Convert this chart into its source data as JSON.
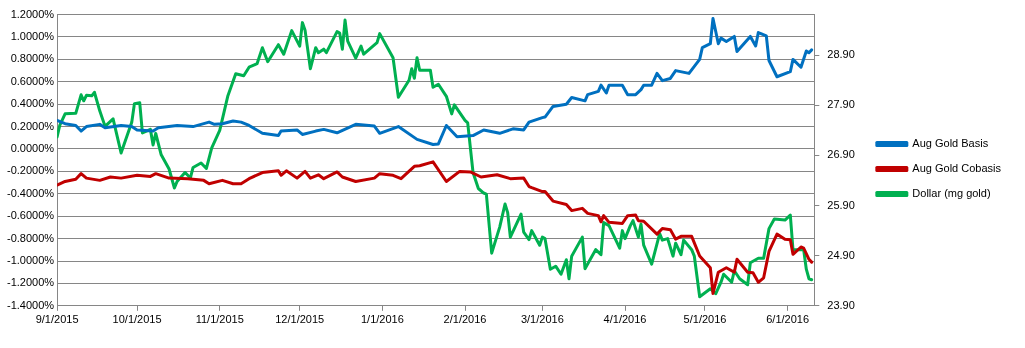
{
  "chart_data": {
    "type": "line",
    "xlim": [
      "2015-09-01",
      "2016-06-11"
    ],
    "xticks": [
      {
        "value": "2015-09-01",
        "label": "9/1/2015"
      },
      {
        "value": "2015-10-01",
        "label": "10/1/2015"
      },
      {
        "value": "2015-11-01",
        "label": "11/1/2015"
      },
      {
        "value": "2015-12-01",
        "label": "12/1/2015"
      },
      {
        "value": "2016-01-01",
        "label": "1/1/2016"
      },
      {
        "value": "2016-02-01",
        "label": "2/1/2016"
      },
      {
        "value": "2016-03-01",
        "label": "3/1/2016"
      },
      {
        "value": "2016-04-01",
        "label": "4/1/2016"
      },
      {
        "value": "2016-05-01",
        "label": "5/1/2016"
      },
      {
        "value": "2016-06-01",
        "label": "6/1/2016"
      }
    ],
    "ylim": [
      -1.4,
      1.2
    ],
    "yticks": [
      {
        "value": -1.4,
        "label": "-1.4000%"
      },
      {
        "value": -1.2,
        "label": "-1.2000%"
      },
      {
        "value": -1.0,
        "label": "-1.0000%"
      },
      {
        "value": -0.8,
        "label": "-0.8000%"
      },
      {
        "value": -0.6,
        "label": "-0.6000%"
      },
      {
        "value": -0.4,
        "label": "-0.4000%"
      },
      {
        "value": -0.2,
        "label": "-0.2000%"
      },
      {
        "value": 0,
        "label": "0.0000%"
      },
      {
        "value": 0.2,
        "label": "0.2000%"
      },
      {
        "value": 0.4,
        "label": "0.4000%"
      },
      {
        "value": 0.6,
        "label": "0.6000%"
      },
      {
        "value": 0.8,
        "label": "0.8000%"
      },
      {
        "value": 1.0,
        "label": "1.0000%"
      },
      {
        "value": 1.2,
        "label": "1.2000%"
      }
    ],
    "y2lim": [
      23.9,
      29.71
    ],
    "y2ticks": [
      {
        "value": 23.9,
        "label": "23.90"
      },
      {
        "value": 24.9,
        "label": "24.90"
      },
      {
        "value": 25.9,
        "label": "25.90"
      },
      {
        "value": 26.9,
        "label": "26.90"
      },
      {
        "value": 27.9,
        "label": "27.90"
      },
      {
        "value": 28.9,
        "label": "28.90"
      }
    ],
    "grid": "y",
    "legend": "right",
    "marker": "none",
    "line_style": "solid",
    "series": [
      {
        "name": "Aug Gold Basis",
        "color": "#0070c0",
        "x": [
          "2015-09-01",
          "2015-09-04",
          "2015-09-08",
          "2015-09-10",
          "2015-09-12",
          "2015-09-17",
          "2015-09-19",
          "2015-09-25",
          "2015-09-29",
          "2015-10-01",
          "2015-10-07",
          "2015-10-09",
          "2015-10-16",
          "2015-10-22",
          "2015-10-28",
          "2015-10-30",
          "2015-11-02",
          "2015-11-06",
          "2015-11-09",
          "2015-11-12",
          "2015-11-17",
          "2015-11-23",
          "2015-11-24",
          "2015-11-30",
          "2015-12-02",
          "2015-12-07",
          "2015-12-10",
          "2015-12-15",
          "2015-12-22",
          "2015-12-29",
          "2015-12-31",
          "2016-01-07",
          "2016-01-14",
          "2016-01-20",
          "2016-01-22",
          "2016-01-25",
          "2016-01-29",
          "2016-02-04",
          "2016-02-08",
          "2016-02-14",
          "2016-02-19",
          "2016-02-23",
          "2016-02-25",
          "2016-03-01",
          "2016-03-02",
          "2016-03-05",
          "2016-03-10",
          "2016-03-12",
          "2016-03-17",
          "2016-03-18",
          "2016-03-22",
          "2016-03-23",
          "2016-03-25",
          "2016-03-26",
          "2016-03-31",
          "2016-04-02",
          "2016-04-05",
          "2016-04-07",
          "2016-04-08",
          "2016-04-11",
          "2016-04-13",
          "2016-04-15",
          "2016-04-18",
          "2016-04-20",
          "2016-04-25",
          "2016-04-29",
          "2016-04-30",
          "2016-05-03",
          "2016-05-04",
          "2016-05-06",
          "2016-05-07",
          "2016-05-09",
          "2016-05-12",
          "2016-05-13",
          "2016-05-18",
          "2016-05-20",
          "2016-05-21",
          "2016-05-24",
          "2016-05-25",
          "2016-05-28",
          "2016-06-02",
          "2016-06-03",
          "2016-06-06",
          "2016-06-08",
          "2016-06-09",
          "2016-06-10"
        ],
        "values": [
          0.255,
          0.226,
          0.21,
          0.16,
          0.2,
          0.22,
          0.19,
          0.21,
          0.2,
          0.17,
          0.16,
          0.19,
          0.21,
          0.2,
          0.24,
          0.22,
          0.226,
          0.25,
          0.24,
          0.21,
          0.14,
          0.12,
          0.16,
          0.17,
          0.13,
          0.16,
          0.175,
          0.145,
          0.22,
          0.205,
          0.14,
          0.2,
          0.086,
          0.04,
          0.045,
          0.21,
          0.11,
          0.12,
          0.17,
          0.14,
          0.18,
          0.17,
          0.24,
          0.28,
          0.285,
          0.38,
          0.4,
          0.46,
          0.43,
          0.485,
          0.515,
          0.57,
          0.5,
          0.57,
          0.57,
          0.485,
          0.485,
          0.53,
          0.57,
          0.57,
          0.675,
          0.61,
          0.63,
          0.7,
          0.675,
          0.8,
          0.905,
          0.94,
          1.165,
          0.94,
          0.99,
          0.96,
          1.005,
          0.87,
          1.005,
          0.92,
          1.04,
          1.01,
          0.79,
          0.645,
          0.69,
          0.8,
          0.73,
          0.875,
          0.86,
          0.885
        ]
      },
      {
        "name": "Aug Gold Cobasis",
        "color": "#c00000",
        "x": [
          "2015-09-01",
          "2015-09-04",
          "2015-09-08",
          "2015-09-10",
          "2015-09-12",
          "2015-09-17",
          "2015-09-21",
          "2015-09-25",
          "2015-10-01",
          "2015-10-06",
          "2015-10-08",
          "2015-10-13",
          "2015-10-20",
          "2015-10-26",
          "2015-10-28",
          "2015-11-02",
          "2015-11-06",
          "2015-11-09",
          "2015-11-12",
          "2015-11-17",
          "2015-11-23",
          "2015-11-24",
          "2015-11-26",
          "2015-11-30",
          "2015-12-03",
          "2015-12-05",
          "2015-12-08",
          "2015-12-10",
          "2015-12-15",
          "2015-12-17",
          "2015-12-22",
          "2015-12-29",
          "2015-12-31",
          "2016-01-05",
          "2016-01-08",
          "2016-01-13",
          "2016-01-15",
          "2016-01-20",
          "2016-01-25",
          "2016-01-30",
          "2016-02-03",
          "2016-02-07",
          "2016-02-13",
          "2016-02-18",
          "2016-02-23",
          "2016-02-25",
          "2016-02-26",
          "2016-03-01",
          "2016-03-02",
          "2016-03-05",
          "2016-03-10",
          "2016-03-12",
          "2016-03-16",
          "2016-03-18",
          "2016-03-22",
          "2016-03-23",
          "2016-03-24",
          "2016-03-26",
          "2016-03-31",
          "2016-04-02",
          "2016-04-05",
          "2016-04-06",
          "2016-04-08",
          "2016-04-13",
          "2016-04-15",
          "2016-04-18",
          "2016-04-20",
          "2016-04-22",
          "2016-04-26",
          "2016-04-29",
          "2016-05-03",
          "2016-05-04",
          "2016-05-06",
          "2016-05-09",
          "2016-05-12",
          "2016-05-13",
          "2016-05-17",
          "2016-05-19",
          "2016-05-21",
          "2016-05-23",
          "2016-05-25",
          "2016-05-28",
          "2016-05-31",
          "2016-06-02",
          "2016-06-03",
          "2016-06-06",
          "2016-06-07",
          "2016-06-09",
          "2016-06-10"
        ],
        "values": [
          -0.322,
          -0.29,
          -0.27,
          -0.22,
          -0.26,
          -0.28,
          -0.25,
          -0.26,
          -0.235,
          -0.245,
          -0.22,
          -0.26,
          -0.265,
          -0.28,
          -0.31,
          -0.28,
          -0.31,
          -0.31,
          -0.265,
          -0.21,
          -0.195,
          -0.235,
          -0.195,
          -0.26,
          -0.2,
          -0.26,
          -0.23,
          -0.265,
          -0.205,
          -0.25,
          -0.29,
          -0.26,
          -0.22,
          -0.235,
          -0.265,
          -0.155,
          -0.15,
          -0.115,
          -0.29,
          -0.2,
          -0.205,
          -0.25,
          -0.23,
          -0.265,
          -0.26,
          -0.335,
          -0.345,
          -0.38,
          -0.38,
          -0.465,
          -0.495,
          -0.55,
          -0.53,
          -0.575,
          -0.595,
          -0.65,
          -0.595,
          -0.655,
          -0.665,
          -0.595,
          -0.59,
          -0.64,
          -0.645,
          -0.76,
          -0.71,
          -0.72,
          -0.805,
          -0.78,
          -0.78,
          -0.955,
          -1.06,
          -1.29,
          -1.1,
          -1.06,
          -1.1,
          -0.985,
          -1.1,
          -1.105,
          -1.19,
          -1.15,
          -0.915,
          -0.76,
          -0.805,
          -0.81,
          -0.94,
          -0.875,
          -0.885,
          -0.985,
          -1.01
        ]
      },
      {
        "name": "Dollar (mg gold)",
        "color": "#00b050",
        "axis": "y2",
        "x": [
          "2015-09-01",
          "2015-09-02",
          "2015-09-04",
          "2015-09-08",
          "2015-09-10",
          "2015-09-11",
          "2015-09-12",
          "2015-09-14",
          "2015-09-15",
          "2015-09-17",
          "2015-09-19",
          "2015-09-22",
          "2015-09-25",
          "2015-09-29",
          "2015-09-30",
          "2015-10-02",
          "2015-10-03",
          "2015-10-06",
          "2015-10-07",
          "2015-10-08",
          "2015-10-10",
          "2015-10-13",
          "2015-10-15",
          "2015-10-16",
          "2015-10-19",
          "2015-10-21",
          "2015-10-22",
          "2015-10-25",
          "2015-10-27",
          "2015-10-29",
          "2015-11-01",
          "2015-11-04",
          "2015-11-07",
          "2015-11-10",
          "2015-11-12",
          "2015-11-15",
          "2015-11-17",
          "2015-11-19",
          "2015-11-23",
          "2015-11-25",
          "2015-11-28",
          "2015-12-01",
          "2015-12-02",
          "2015-12-03",
          "2015-12-05",
          "2015-12-07",
          "2015-12-08",
          "2015-12-10",
          "2015-12-11",
          "2015-12-15",
          "2015-12-16",
          "2015-12-17",
          "2015-12-18",
          "2015-12-19",
          "2015-12-22",
          "2015-12-24",
          "2015-12-25",
          "2015-12-30",
          "2015-12-31",
          "2016-01-05",
          "2016-01-07",
          "2016-01-11",
          "2016-01-12",
          "2016-01-13",
          "2016-01-14",
          "2016-01-15",
          "2016-01-19",
          "2016-01-20",
          "2016-01-22",
          "2016-01-25",
          "2016-01-27",
          "2016-01-28",
          "2016-02-01",
          "2016-02-02",
          "2016-02-04",
          "2016-02-06",
          "2016-02-08",
          "2016-02-09",
          "2016-02-11",
          "2016-02-14",
          "2016-02-16",
          "2016-02-17",
          "2016-02-18",
          "2016-02-22",
          "2016-02-23",
          "2016-02-25",
          "2016-02-26",
          "2016-02-29",
          "2016-03-01",
          "2016-03-02",
          "2016-03-04",
          "2016-03-06",
          "2016-03-08",
          "2016-03-10",
          "2016-03-11",
          "2016-03-12",
          "2016-03-16",
          "2016-03-17",
          "2016-03-21",
          "2016-03-23",
          "2016-03-24",
          "2016-03-26",
          "2016-03-30",
          "2016-03-31",
          "2016-04-01",
          "2016-04-03",
          "2016-04-04",
          "2016-04-06",
          "2016-04-07",
          "2016-04-08",
          "2016-04-11",
          "2016-04-14",
          "2016-04-15",
          "2016-04-17",
          "2016-04-19",
          "2016-04-20",
          "2016-04-22",
          "2016-04-23",
          "2016-04-26",
          "2016-04-27",
          "2016-04-29",
          "2016-05-03",
          "2016-05-05",
          "2016-05-07",
          "2016-05-08",
          "2016-05-11",
          "2016-05-12",
          "2016-05-14",
          "2016-05-17",
          "2016-05-18",
          "2016-05-21",
          "2016-05-23",
          "2016-05-25",
          "2016-05-27",
          "2016-05-31",
          "2016-06-02",
          "2016-06-03",
          "2016-06-07",
          "2016-06-08",
          "2016-06-09",
          "2016-06-10"
        ],
        "values": [
          27.27,
          27.5,
          27.73,
          27.74,
          28.11,
          27.99,
          28.1,
          28.09,
          28.16,
          27.79,
          27.48,
          27.63,
          26.95,
          27.56,
          27.93,
          27.95,
          27.35,
          27.42,
          27.11,
          27.34,
          26.92,
          26.63,
          26.25,
          26.38,
          26.56,
          26.45,
          26.66,
          26.75,
          26.64,
          27.05,
          27.4,
          28.08,
          28.53,
          28.49,
          28.66,
          28.73,
          29.05,
          28.77,
          29.11,
          28.92,
          29.39,
          29.08,
          29.55,
          29.4,
          28.63,
          29.05,
          28.95,
          29.02,
          28.95,
          29.37,
          29.34,
          29.02,
          29.6,
          29.18,
          28.84,
          29.08,
          28.92,
          29.15,
          29.33,
          28.85,
          28.06,
          28.4,
          28.63,
          28.44,
          28.85,
          28.6,
          28.6,
          28.26,
          28.32,
          28.08,
          27.73,
          27.91,
          27.6,
          27.55,
          26.56,
          26.24,
          26.15,
          26.13,
          24.95,
          25.47,
          25.93,
          25.76,
          25.27,
          25.73,
          25.37,
          25.22,
          25.4,
          25.11,
          25.27,
          25.24,
          24.63,
          24.69,
          24.53,
          24.82,
          24.44,
          24.89,
          25.27,
          24.64,
          25.02,
          24.92,
          25.56,
          25.5,
          25.05,
          25.4,
          25.24,
          25.5,
          25.6,
          25.27,
          25.53,
          25.11,
          24.73,
          25.34,
          25.21,
          25.24,
          24.89,
          25.15,
          24.92,
          25.21,
          25.02,
          24.89,
          24.08,
          24.24,
          24.14,
          24.37,
          24.53,
          24.37,
          24.6,
          24.44,
          24.32,
          24.76,
          24.85,
          24.85,
          25.44,
          25.63,
          25.61,
          25.71,
          25.02,
          25.02,
          24.63,
          24.44,
          24.42
        ]
      }
    ]
  }
}
